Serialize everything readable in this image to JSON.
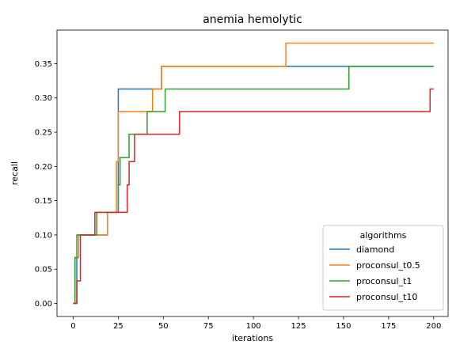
{
  "chart_data": {
    "type": "line",
    "title": "anemia hemolytic",
    "xlabel": "iterations",
    "ylabel": "recall",
    "xlim": [
      -9,
      208
    ],
    "ylim": [
      -0.019,
      0.399
    ],
    "xticks": [
      0,
      25,
      50,
      75,
      100,
      125,
      150,
      175,
      200
    ],
    "yticks": [
      0.0,
      0.05,
      0.1,
      0.15,
      0.2,
      0.25,
      0.3,
      0.35
    ],
    "ytick_labels": [
      "0.00",
      "0.05",
      "0.10",
      "0.15",
      "0.20",
      "0.25",
      "0.30",
      "0.35"
    ],
    "grid": false,
    "legend": {
      "title": "algorithms",
      "placement": "lower-right"
    },
    "series": [
      {
        "name": "diamond",
        "color": "#1f77b4",
        "step": true,
        "x": [
          0,
          2,
          3,
          17,
          19,
          24,
          25,
          48,
          49,
          200
        ],
        "y": [
          0.0,
          0.067,
          0.1,
          0.1,
          0.133,
          0.133,
          0.313,
          0.313,
          0.346,
          0.346
        ]
      },
      {
        "name": "proconsul_t0.5",
        "color": "#ff7f0e",
        "step": true,
        "x": [
          0,
          1,
          3,
          18,
          19,
          23,
          24,
          25,
          43,
          44,
          49,
          117,
          118,
          200
        ],
        "y": [
          0.0,
          0.067,
          0.1,
          0.1,
          0.133,
          0.133,
          0.207,
          0.28,
          0.28,
          0.313,
          0.346,
          0.346,
          0.38,
          0.38
        ]
      },
      {
        "name": "proconsul_t1",
        "color": "#2ca02c",
        "step": true,
        "x": [
          0,
          1,
          2,
          12,
          13,
          24,
          25,
          26,
          29,
          31,
          40,
          41,
          50,
          51,
          152,
          153,
          200
        ],
        "y": [
          0.0,
          0.067,
          0.1,
          0.1,
          0.133,
          0.133,
          0.173,
          0.213,
          0.213,
          0.247,
          0.247,
          0.28,
          0.28,
          0.313,
          0.313,
          0.346,
          0.346
        ]
      },
      {
        "name": "proconsul_t10",
        "color": "#d62728",
        "step": true,
        "x": [
          0,
          1,
          2,
          3,
          4,
          11,
          12,
          29,
          30,
          31,
          33,
          34,
          58,
          59,
          197,
          198,
          200
        ],
        "y": [
          0.0,
          0.0,
          0.033,
          0.033,
          0.1,
          0.1,
          0.133,
          0.133,
          0.173,
          0.207,
          0.207,
          0.247,
          0.247,
          0.28,
          0.28,
          0.313,
          0.313
        ]
      }
    ]
  }
}
